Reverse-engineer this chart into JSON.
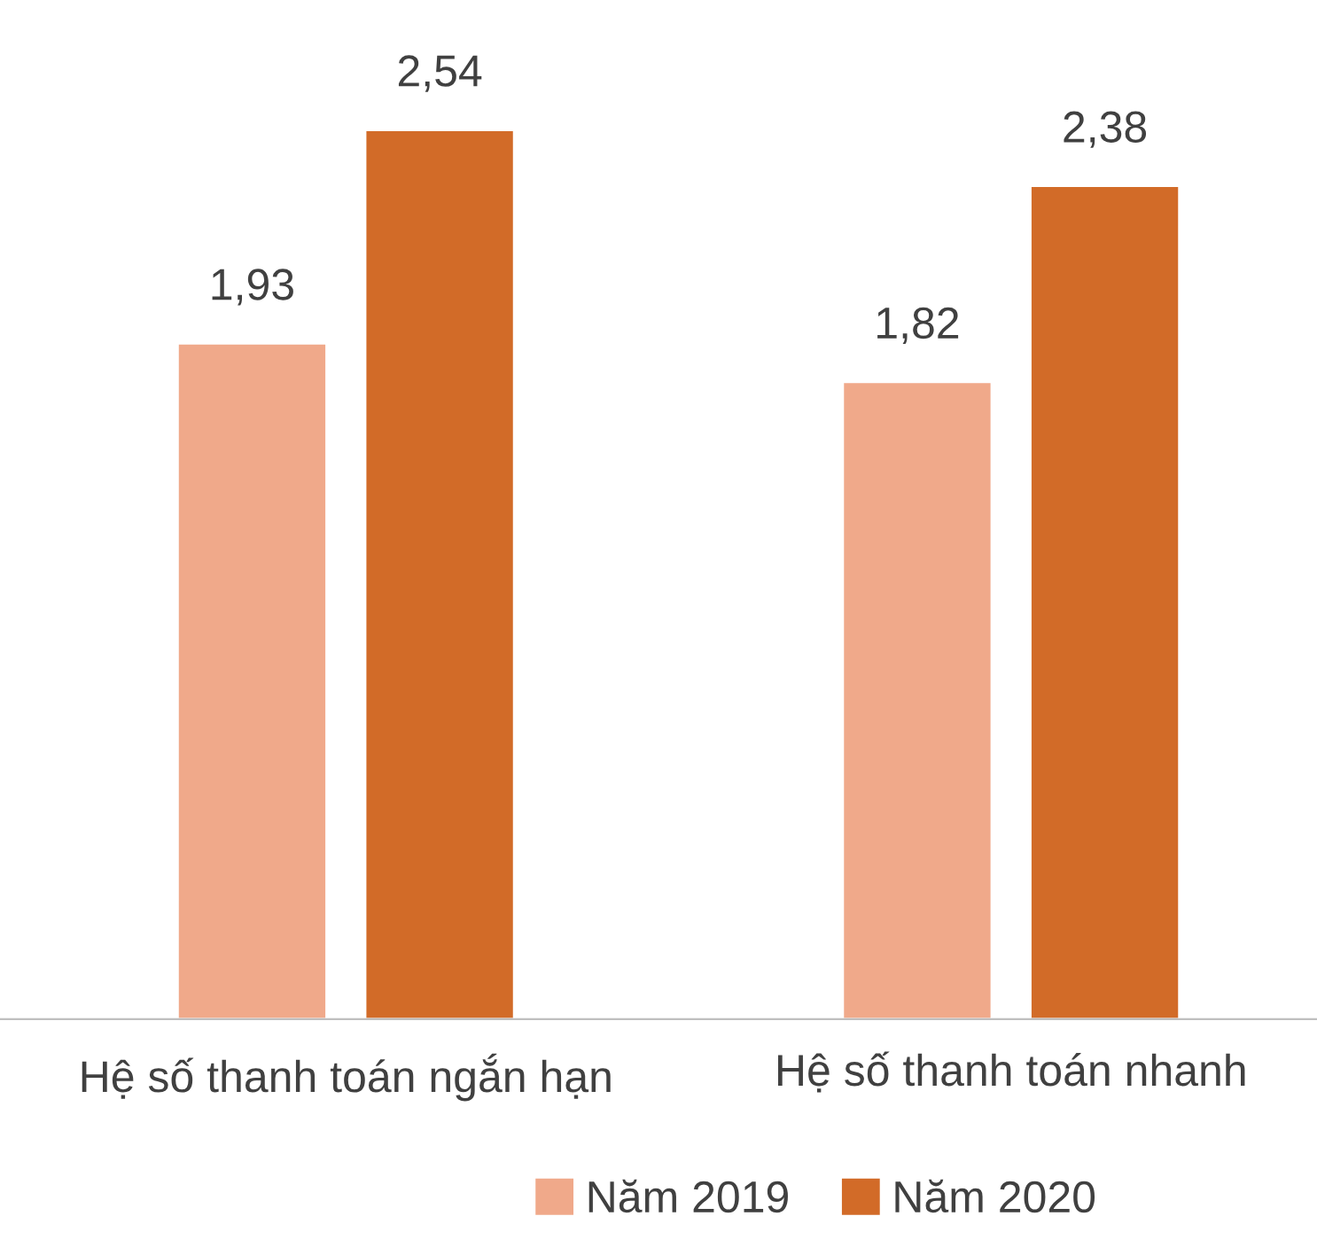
{
  "chart_data": {
    "type": "bar",
    "categories": [
      "Hệ số thanh toán ngắn hạn",
      "Hệ số thanh toán nhanh"
    ],
    "series": [
      {
        "name": "Năm 2019",
        "color": "#f0a98a",
        "values": [
          1.93,
          1.82
        ],
        "value_labels": [
          "1,93",
          "1,82"
        ]
      },
      {
        "name": "Năm 2020",
        "color": "#d26b28",
        "values": [
          2.54,
          2.38
        ],
        "value_labels": [
          "2,54",
          "2,38"
        ]
      }
    ],
    "legend": "bottom",
    "grid": false
  }
}
